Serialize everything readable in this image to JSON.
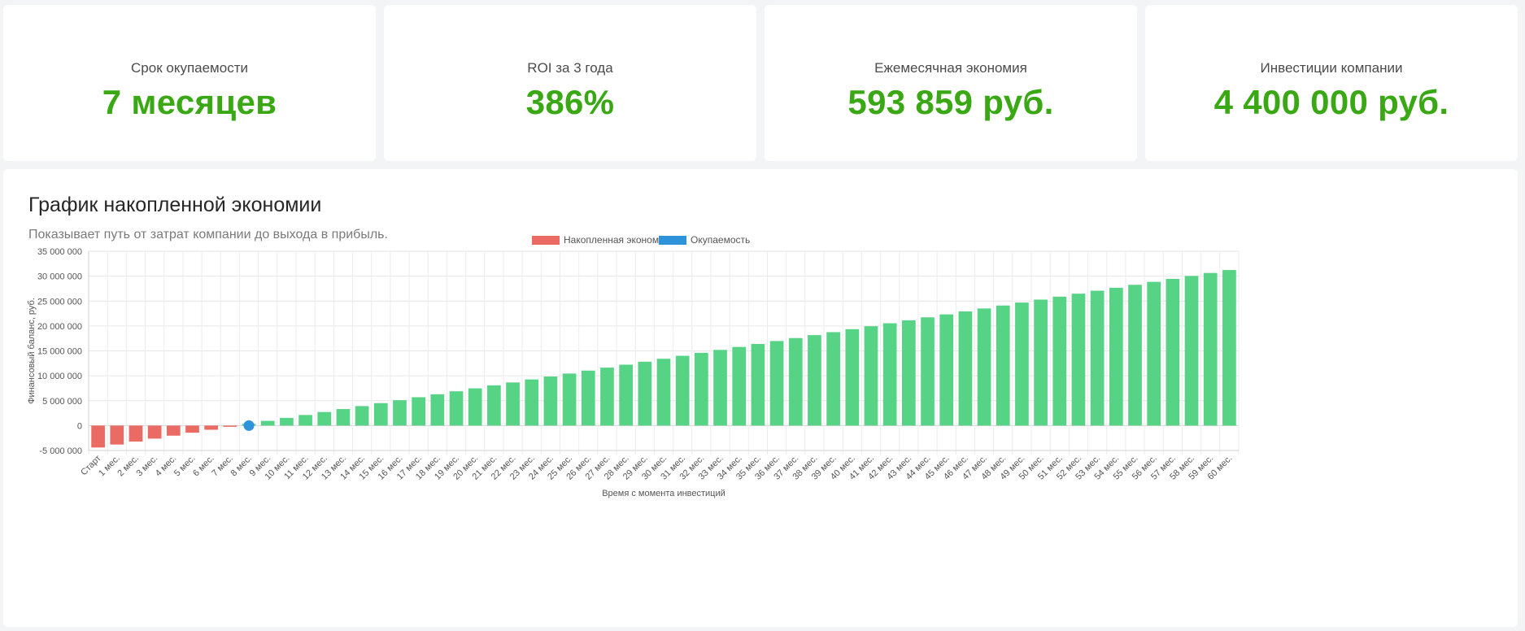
{
  "kpis": [
    {
      "label": "Срок окупаемости",
      "value": "7 месяцев"
    },
    {
      "label": "ROI за 3 года",
      "value": "386%"
    },
    {
      "label": "Ежемесячная экономия",
      "value": "593 859 руб."
    },
    {
      "label": "Инвестиции компании",
      "value": "4 400 000 руб."
    }
  ],
  "chart": {
    "title": "График накопленной экономии",
    "subtitle": "Показывает путь от затрат компании до выхода в прибыль."
  },
  "colors": {
    "negative": "#ea6b63",
    "positive": "#57d386",
    "payback": "#2f93da",
    "value_green": "#3aa815"
  },
  "chart_data": {
    "type": "bar",
    "xlabel": "Время с момента инвестиций",
    "ylabel": "Финансовый баланс, руб.",
    "ylim": [
      -5000000,
      35000000
    ],
    "yticks": [
      -5000000,
      0,
      5000000,
      10000000,
      15000000,
      20000000,
      25000000,
      30000000,
      35000000
    ],
    "ytick_labels": [
      "-5 000 000",
      "0",
      "5 000 000",
      "10 000 000",
      "15 000 000",
      "20 000 000",
      "25 000 000",
      "30 000 000",
      "35 000 000"
    ],
    "legend": [
      "Накопленная экономия",
      "Окупаемость"
    ],
    "legend_position": "top-center",
    "grid": true,
    "categories": [
      "Старт",
      "1 мес.",
      "2 мес.",
      "3 мес.",
      "4 мес.",
      "5 мес.",
      "6 мес.",
      "7 мес.",
      "8 мес.",
      "9 мес.",
      "10 мес.",
      "11 мес.",
      "12 мес.",
      "13 мес.",
      "14 мес.",
      "15 мес.",
      "16 мес.",
      "17 мес.",
      "18 мес.",
      "19 мес.",
      "20 мес.",
      "21 мес.",
      "22 мес.",
      "23 мес.",
      "24 мес.",
      "25 мес.",
      "26 мес.",
      "27 мес.",
      "28 мес.",
      "29 мес.",
      "30 мес.",
      "31 мес.",
      "32 мес.",
      "33 мес.",
      "34 мес.",
      "35 мес.",
      "36 мес.",
      "37 мес.",
      "38 мес.",
      "39 мес.",
      "40 мес.",
      "41 мес.",
      "42 мес.",
      "43 мес.",
      "44 мес.",
      "45 мес.",
      "46 мес.",
      "47 мес.",
      "48 мес.",
      "49 мес.",
      "50 мес.",
      "51 мес.",
      "52 мес.",
      "53 мес.",
      "54 мес.",
      "55 мес.",
      "56 мес.",
      "57 мес.",
      "58 мес.",
      "59 мес.",
      "60 мес."
    ],
    "series": [
      {
        "name": "Накопленная экономия",
        "values": [
          -4400000,
          -3806141,
          -3212282,
          -2618423,
          -2024564,
          -1430705,
          -836846,
          -242987,
          350872,
          944731,
          1538590,
          2132449,
          2726308,
          3320167,
          3914026,
          4507885,
          5101744,
          5695603,
          6289462,
          6883321,
          7477180,
          8071039,
          8664898,
          9258757,
          9852616,
          10446475,
          11040334,
          11634193,
          12228052,
          12821911,
          13415770,
          14009629,
          14603488,
          15197347,
          15791206,
          16385065,
          16978924,
          17572783,
          18166642,
          18760501,
          19354360,
          19948219,
          20542078,
          21135937,
          21729796,
          22323655,
          22917514,
          23511373,
          24105232,
          24699091,
          25292950,
          25886809,
          26480668,
          27074527,
          27668386,
          28262245,
          28856104,
          29449963,
          30043822,
          30637681,
          31231540
        ]
      },
      {
        "name": "Окупаемость",
        "point": {
          "category": "8 мес.",
          "value": 0
        }
      }
    ]
  }
}
